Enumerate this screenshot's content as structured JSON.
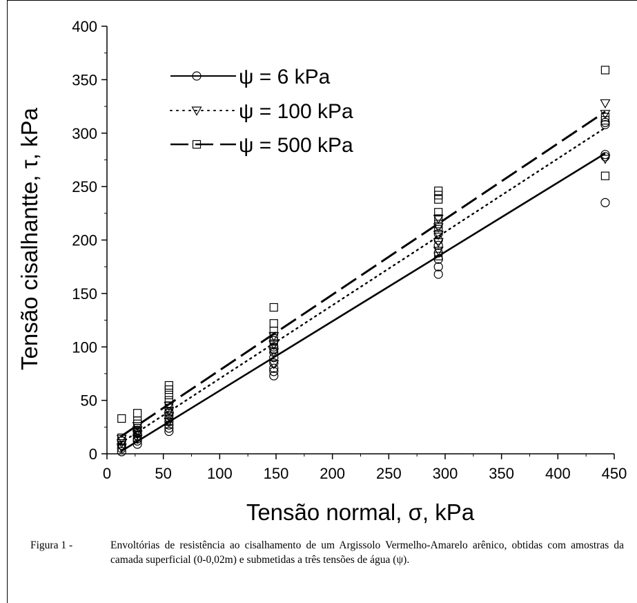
{
  "chart_data": {
    "type": "scatter",
    "xlabel": "Tensão normal, σ, kPa",
    "ylabel": "Tensão cisalhantte, τ, kPa",
    "xlim": [
      0,
      450
    ],
    "ylim": [
      0,
      400
    ],
    "xticks": [
      "0",
      "50",
      "100",
      "150",
      "200",
      "250",
      "300",
      "350",
      "400",
      "450"
    ],
    "yticks": [
      "0",
      "50",
      "100",
      "150",
      "200",
      "250",
      "300",
      "350",
      "400"
    ],
    "grid": false,
    "legend_position": "top-left",
    "series": [
      {
        "name": "ψ = 6 kPa",
        "marker": "circle",
        "line_style": "solid",
        "line": {
          "x0": 12,
          "y0": 2,
          "x1": 442,
          "y1": 281
        },
        "points": [
          [
            13,
            2
          ],
          [
            13,
            5
          ],
          [
            13,
            8
          ],
          [
            13,
            12
          ],
          [
            27,
            9
          ],
          [
            27,
            12
          ],
          [
            27,
            14
          ],
          [
            27,
            17
          ],
          [
            27,
            19
          ],
          [
            27,
            22
          ],
          [
            55,
            21
          ],
          [
            55,
            24
          ],
          [
            55,
            27
          ],
          [
            55,
            30
          ],
          [
            55,
            33
          ],
          [
            55,
            36
          ],
          [
            55,
            39
          ],
          [
            148,
            73
          ],
          [
            148,
            77
          ],
          [
            148,
            80
          ],
          [
            148,
            85
          ],
          [
            148,
            90
          ],
          [
            148,
            95
          ],
          [
            148,
            100
          ],
          [
            148,
            106
          ],
          [
            294,
            168
          ],
          [
            294,
            175
          ],
          [
            294,
            182
          ],
          [
            294,
            188
          ],
          [
            294,
            195
          ],
          [
            294,
            200
          ],
          [
            294,
            206
          ],
          [
            442,
            235
          ],
          [
            442,
            278
          ],
          [
            442,
            280
          ],
          [
            442,
            308
          ],
          [
            442,
            310
          ]
        ]
      },
      {
        "name": "ψ = 100 kPa",
        "marker": "triangle-down",
        "line_style": "dotted",
        "line": {
          "x0": 12,
          "y0": 10,
          "x1": 442,
          "y1": 305
        },
        "points": [
          [
            13,
            6
          ],
          [
            13,
            10
          ],
          [
            13,
            14
          ],
          [
            27,
            14
          ],
          [
            27,
            18
          ],
          [
            27,
            22
          ],
          [
            27,
            26
          ],
          [
            55,
            30
          ],
          [
            55,
            35
          ],
          [
            55,
            40
          ],
          [
            55,
            45
          ],
          [
            148,
            84
          ],
          [
            148,
            95
          ],
          [
            148,
            102
          ],
          [
            148,
            110
          ],
          [
            294,
            190
          ],
          [
            294,
            198
          ],
          [
            294,
            205
          ],
          [
            294,
            212
          ],
          [
            294,
            220
          ],
          [
            442,
            276
          ],
          [
            442,
            318
          ],
          [
            442,
            328
          ]
        ]
      },
      {
        "name": "ψ = 500 kPa",
        "marker": "square",
        "line_style": "dashed",
        "line": {
          "x0": 12,
          "y0": 16,
          "x1": 442,
          "y1": 320
        },
        "points": [
          [
            13,
            12
          ],
          [
            13,
            15
          ],
          [
            13,
            33
          ],
          [
            27,
            20
          ],
          [
            27,
            24
          ],
          [
            27,
            28
          ],
          [
            27,
            31
          ],
          [
            27,
            38
          ],
          [
            55,
            40
          ],
          [
            55,
            45
          ],
          [
            55,
            50
          ],
          [
            55,
            55
          ],
          [
            55,
            60
          ],
          [
            55,
            64
          ],
          [
            148,
            98
          ],
          [
            148,
            103
          ],
          [
            148,
            110
          ],
          [
            148,
            115
          ],
          [
            148,
            122
          ],
          [
            148,
            137
          ],
          [
            294,
            185
          ],
          [
            294,
            210
          ],
          [
            294,
            215
          ],
          [
            294,
            220
          ],
          [
            294,
            226
          ],
          [
            294,
            238
          ],
          [
            294,
            242
          ],
          [
            294,
            246
          ],
          [
            442,
            260
          ],
          [
            442,
            312
          ],
          [
            442,
            315
          ],
          [
            442,
            359
          ]
        ]
      }
    ]
  },
  "caption": {
    "label": "Figura 1 -",
    "text": "Envoltórias de resistência ao cisalhamento de um Argissolo Vermelho-Amarelo arênico, obtidas com amostras da camada superficial (0-0,02m) e submetidas a três tensões de água (ψ)."
  }
}
